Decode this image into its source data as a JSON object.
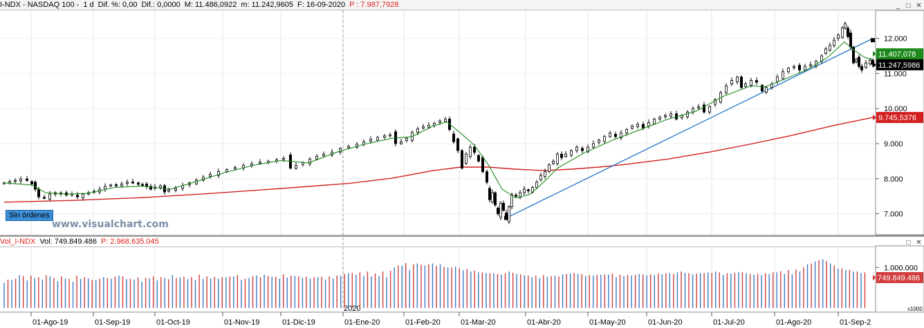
{
  "header": {
    "symbol": "I-NDX - NASDAQ 100 -",
    "period": "1 d",
    "dif_pct": "Dif. %: 0,00",
    "dif": "Dif.: 0,0000",
    "max": "M: 11.486,0922",
    "min": "m: 11.242,9605",
    "date": "F: 16-09-2020",
    "p": "P : 7.987,7928"
  },
  "volume_header": {
    "name": "Vol_I-NDX",
    "vol": "Vol: 749.849.486",
    "p": "P: 2.968.635.045"
  },
  "window_buttons": [
    "_",
    "□",
    "✕"
  ],
  "badge": "Sin órdenes",
  "watermark": "www.visualchart.com",
  "year_marker": "2020",
  "price_labels": {
    "green_box": "11.407,078",
    "black_box": "11.247,5986",
    "red_box": "9.745,5376"
  },
  "volume_labels": {
    "red_box": "749.849.486",
    "scale_note": "x1000"
  },
  "colors": {
    "candle": "#000000",
    "ma_short": "#1e8a1e",
    "ma_long": "#d21e1e",
    "trendline": "#1f74c8",
    "vol_up": "#3a78c8",
    "vol_down": "#d23c3c"
  },
  "chart_data": [
    {
      "type": "candlestick",
      "title": "I-NDX - NASDAQ 100",
      "ylim": [
        6400,
        12800
      ],
      "yticks": [
        7000,
        8000,
        9000,
        10000,
        11000,
        12000
      ],
      "ytick_labels": [
        "7.000",
        "8.000",
        "9.000",
        "10.000",
        "11.000",
        "12.000"
      ],
      "xtick_labels": [
        "01-Ago-19",
        "01-Sep-19",
        "01-Oct-19",
        "01-Nov-19",
        "01-Dic-19",
        "01-Ene-20",
        "01-Feb-20",
        "01-Mar-20",
        "01-Abr-20",
        "01-May-20",
        "01-Jun-20",
        "01-Jul-20",
        "01-Ago-20",
        "01-Sep-2"
      ],
      "close_path": [
        [
          0,
          7880
        ],
        [
          8,
          7920
        ],
        [
          16,
          7950
        ],
        [
          24,
          7990
        ],
        [
          33,
          7950
        ],
        [
          40,
          7850
        ],
        [
          45,
          7700
        ],
        [
          50,
          7480
        ],
        [
          58,
          7450
        ],
        [
          66,
          7560
        ],
        [
          74,
          7600
        ],
        [
          82,
          7580
        ],
        [
          90,
          7530
        ],
        [
          98,
          7560
        ],
        [
          106,
          7480
        ],
        [
          114,
          7560
        ],
        [
          122,
          7600
        ],
        [
          130,
          7640
        ],
        [
          138,
          7700
        ],
        [
          146,
          7780
        ],
        [
          154,
          7820
        ],
        [
          162,
          7800
        ],
        [
          170,
          7850
        ],
        [
          178,
          7900
        ],
        [
          186,
          7880
        ],
        [
          194,
          7840
        ],
        [
          200,
          7830
        ],
        [
          206,
          7780
        ],
        [
          212,
          7700
        ],
        [
          218,
          7760
        ],
        [
          226,
          7800
        ],
        [
          232,
          7620
        ],
        [
          238,
          7680
        ],
        [
          248,
          7720
        ],
        [
          258,
          7800
        ],
        [
          268,
          7880
        ],
        [
          278,
          7960
        ],
        [
          288,
          8040
        ],
        [
          298,
          8120
        ],
        [
          310,
          8200
        ],
        [
          322,
          8260
        ],
        [
          334,
          8320
        ],
        [
          346,
          8380
        ],
        [
          358,
          8420
        ],
        [
          370,
          8470
        ],
        [
          382,
          8500
        ],
        [
          394,
          8540
        ],
        [
          404,
          8580
        ],
        [
          414,
          8300
        ],
        [
          422,
          8380
        ],
        [
          432,
          8460
        ],
        [
          442,
          8560
        ],
        [
          452,
          8640
        ],
        [
          462,
          8700
        ],
        [
          474,
          8760
        ],
        [
          486,
          8860
        ],
        [
          498,
          8920
        ],
        [
          510,
          8980
        ],
        [
          520,
          9050
        ],
        [
          530,
          9120
        ],
        [
          540,
          9180
        ],
        [
          550,
          9220
        ],
        [
          558,
          9250
        ],
        [
          566,
          9000
        ],
        [
          574,
          9050
        ],
        [
          582,
          9150
        ],
        [
          590,
          9320
        ],
        [
          598,
          9420
        ],
        [
          606,
          9480
        ],
        [
          614,
          9520
        ],
        [
          622,
          9580
        ],
        [
          630,
          9650
        ],
        [
          638,
          9700
        ],
        [
          644,
          9400
        ],
        [
          650,
          9050
        ],
        [
          656,
          8800
        ],
        [
          662,
          8300
        ],
        [
          668,
          8700
        ],
        [
          674,
          8900
        ],
        [
          680,
          8750
        ],
        [
          686,
          8500
        ],
        [
          692,
          8200
        ],
        [
          698,
          7900
        ],
        [
          702,
          7400
        ],
        [
          706,
          7600
        ],
        [
          710,
          7250
        ],
        [
          714,
          7000
        ],
        [
          718,
          7300
        ],
        [
          722,
          7100
        ],
        [
          726,
          6880
        ],
        [
          730,
          7200
        ],
        [
          734,
          7550
        ],
        [
          740,
          7500
        ],
        [
          746,
          7600
        ],
        [
          752,
          7700
        ],
        [
          758,
          7650
        ],
        [
          764,
          7750
        ],
        [
          770,
          7900
        ],
        [
          776,
          8100
        ],
        [
          782,
          8200
        ],
        [
          788,
          8400
        ],
        [
          794,
          8500
        ],
        [
          800,
          8700
        ],
        [
          806,
          8600
        ],
        [
          812,
          8700
        ],
        [
          820,
          8800
        ],
        [
          828,
          8900
        ],
        [
          836,
          8800
        ],
        [
          844,
          8900
        ],
        [
          852,
          9000
        ],
        [
          860,
          9100
        ],
        [
          868,
          9200
        ],
        [
          876,
          9300
        ],
        [
          884,
          9200
        ],
        [
          892,
          9300
        ],
        [
          900,
          9400
        ],
        [
          908,
          9500
        ],
        [
          916,
          9550
        ],
        [
          924,
          9450
        ],
        [
          932,
          9600
        ],
        [
          940,
          9700
        ],
        [
          948,
          9750
        ],
        [
          956,
          9800
        ],
        [
          964,
          9850
        ],
        [
          972,
          9700
        ],
        [
          980,
          9800
        ],
        [
          988,
          9900
        ],
        [
          996,
          10000
        ],
        [
          1004,
          10050
        ],
        [
          1012,
          9900
        ],
        [
          1020,
          10050
        ],
        [
          1028,
          10250
        ],
        [
          1036,
          10450
        ],
        [
          1044,
          10650
        ],
        [
          1052,
          10800
        ],
        [
          1060,
          10900
        ],
        [
          1066,
          10600
        ],
        [
          1072,
          10700
        ],
        [
          1080,
          10800
        ],
        [
          1088,
          10750
        ],
        [
          1096,
          10500
        ],
        [
          1102,
          10600
        ],
        [
          1110,
          10700
        ],
        [
          1118,
          10900
        ],
        [
          1126,
          11050
        ],
        [
          1134,
          11150
        ],
        [
          1142,
          11200
        ],
        [
          1150,
          11100
        ],
        [
          1158,
          11200
        ],
        [
          1166,
          11250
        ],
        [
          1174,
          11350
        ],
        [
          1182,
          11500
        ],
        [
          1188,
          11700
        ],
        [
          1194,
          11800
        ],
        [
          1200,
          11950
        ],
        [
          1206,
          12100
        ],
        [
          1212,
          12300
        ],
        [
          1216,
          12420
        ],
        [
          1220,
          12050
        ],
        [
          1224,
          11750
        ],
        [
          1228,
          11300
        ],
        [
          1232,
          11400
        ],
        [
          1236,
          11200
        ],
        [
          1240,
          11100
        ],
        [
          1246,
          11300
        ],
        [
          1252,
          11380
        ],
        [
          1256,
          11248
        ]
      ],
      "ma_short_path": [
        [
          0,
          7880
        ],
        [
          40,
          7820
        ],
        [
          60,
          7600
        ],
        [
          90,
          7560
        ],
        [
          120,
          7580
        ],
        [
          160,
          7750
        ],
        [
          200,
          7790
        ],
        [
          240,
          7700
        ],
        [
          280,
          7930
        ],
        [
          320,
          8180
        ],
        [
          360,
          8380
        ],
        [
          400,
          8520
        ],
        [
          440,
          8450
        ],
        [
          480,
          8750
        ],
        [
          520,
          8980
        ],
        [
          560,
          9150
        ],
        [
          590,
          9200
        ],
        [
          620,
          9500
        ],
        [
          640,
          9620
        ],
        [
          660,
          9300
        ],
        [
          680,
          8950
        ],
        [
          700,
          8400
        ],
        [
          720,
          7700
        ],
        [
          740,
          7450
        ],
        [
          760,
          7550
        ],
        [
          780,
          7900
        ],
        [
          800,
          8300
        ],
        [
          840,
          8750
        ],
        [
          880,
          9100
        ],
        [
          920,
          9400
        ],
        [
          960,
          9700
        ],
        [
          1000,
          9920
        ],
        [
          1040,
          10350
        ],
        [
          1080,
          10650
        ],
        [
          1100,
          10620
        ],
        [
          1130,
          10850
        ],
        [
          1160,
          11100
        ],
        [
          1190,
          11450
        ],
        [
          1215,
          11900
        ],
        [
          1230,
          11650
        ],
        [
          1245,
          11450
        ],
        [
          1256,
          11407
        ]
      ],
      "ma_long_path": [
        [
          0,
          7330
        ],
        [
          100,
          7380
        ],
        [
          200,
          7460
        ],
        [
          300,
          7580
        ],
        [
          400,
          7720
        ],
        [
          500,
          7870
        ],
        [
          560,
          8010
        ],
        [
          620,
          8230
        ],
        [
          660,
          8330
        ],
        [
          700,
          8330
        ],
        [
          740,
          8270
        ],
        [
          780,
          8230
        ],
        [
          820,
          8270
        ],
        [
          860,
          8330
        ],
        [
          900,
          8410
        ],
        [
          960,
          8560
        ],
        [
          1020,
          8760
        ],
        [
          1080,
          8990
        ],
        [
          1140,
          9240
        ],
        [
          1200,
          9520
        ],
        [
          1256,
          9745
        ]
      ],
      "trendline": [
        [
          726,
          6880
        ],
        [
          1256,
          12000
        ]
      ],
      "markers": [
        [
          726,
          6880
        ],
        [
          1256,
          11950
        ]
      ]
    },
    {
      "type": "bar",
      "title": "Vol_I-NDX",
      "ylim": [
        0,
        1500000
      ],
      "ytick_labels": [
        "1.000.000"
      ],
      "yticks": [
        1000000
      ],
      "unit": "x1000",
      "series": [
        {
          "values_up": [
            620,
            690,
            810,
            680,
            740,
            700,
            780,
            660,
            720,
            650,
            720,
            730,
            690,
            760,
            720,
            800,
            710,
            700,
            650,
            730,
            680,
            740,
            810,
            760,
            710,
            690,
            720,
            730,
            720,
            760,
            780,
            690,
            740,
            800,
            820,
            770,
            720,
            750,
            790,
            740,
            720,
            760,
            700,
            730,
            800,
            860,
            820,
            790,
            780,
            790,
            760,
            1000,
            1050,
            940,
            1100,
            1050,
            1100,
            1080,
            1000,
            1020,
            930,
            900,
            880,
            860,
            860,
            820,
            900,
            840,
            800,
            760,
            740,
            770,
            800,
            830,
            850,
            840,
            790,
            800,
            820,
            830,
            760,
            790,
            800,
            840,
            810,
            810,
            830,
            860,
            880,
            870,
            830,
            860,
            880,
            900,
            820,
            850,
            880,
            860,
            820,
            810,
            840,
            880,
            840,
            830,
            900,
            1080,
            1150,
            1200,
            1100,
            970,
            940,
            900,
            860
          ]
        },
        {
          "values_down": [
            700,
            720,
            790,
            800,
            760,
            810,
            740,
            780,
            720,
            800,
            760,
            690,
            720,
            740,
            770,
            780,
            720,
            760,
            740,
            780,
            760,
            710,
            740,
            770,
            760,
            820,
            780,
            770,
            760,
            780,
            810,
            720,
            790,
            760,
            790,
            770,
            830,
            800,
            780,
            770,
            760,
            770,
            780,
            800,
            840,
            870,
            880,
            900,
            850,
            900,
            920,
            1050,
            1110,
            1080,
            1070,
            1080,
            1040,
            1010,
            1000,
            980,
            960,
            920,
            880,
            860,
            840,
            860,
            870,
            830,
            800,
            800,
            810,
            790,
            780,
            840,
            870,
            840,
            810,
            820,
            830,
            850,
            820,
            810,
            820,
            830,
            830,
            850,
            860,
            840,
            900,
            860,
            850,
            860,
            870,
            880,
            860,
            870,
            880,
            840,
            840,
            860,
            880,
            910,
            940,
            950,
            1000,
            1100,
            1180,
            1160,
            1050,
            980,
            940,
            900,
            880
          ]
        }
      ]
    }
  ]
}
